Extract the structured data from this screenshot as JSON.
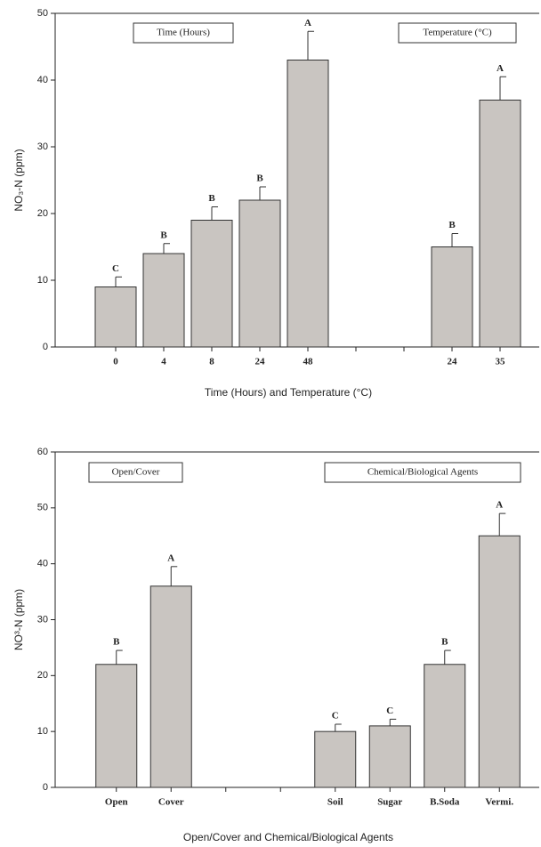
{
  "chart_data": [
    {
      "type": "bar",
      "ylabel": "NO₃-N (ppm)",
      "xlabel": "Time (Hours) and Temperature (°C)",
      "categories": [
        "0",
        "4",
        "8",
        "24",
        "48",
        null,
        null,
        "24",
        "35"
      ],
      "values": [
        9,
        14,
        19,
        22,
        43,
        null,
        null,
        15,
        37
      ],
      "errors": [
        1.5,
        1.5,
        2,
        2,
        4.3,
        null,
        null,
        2,
        3.5
      ],
      "value_labels": [
        "C",
        "B",
        "B",
        "B",
        "A",
        null,
        null,
        "B",
        "A"
      ],
      "annotations": [
        "Time (Hours)",
        "Temperature (°C)"
      ],
      "color": "#c9c5c1",
      "ylim": [
        0,
        50
      ],
      "yticks": [
        0,
        10,
        20,
        30,
        40,
        50
      ]
    },
    {
      "type": "bar",
      "ylabel": "NO³-N (ppm)",
      "xlabel": "Open/Cover and Chemical/Biological Agents",
      "categories": [
        "Open",
        "Cover",
        null,
        null,
        "Soil",
        "Sugar",
        "B.Soda",
        "Vermi."
      ],
      "values": [
        22,
        36,
        null,
        null,
        10,
        11,
        22,
        45
      ],
      "errors": [
        2.5,
        3.5,
        null,
        null,
        1.3,
        1.2,
        2.5,
        4
      ],
      "value_labels": [
        "B",
        "A",
        null,
        null,
        "C",
        "C",
        "B",
        "A"
      ],
      "annotations": [
        "Open/Cover",
        "Chemical/Biological Agents"
      ],
      "color": "#c9c5c1",
      "ylim": [
        0,
        60
      ],
      "yticks": [
        0,
        10,
        20,
        30,
        40,
        50,
        60
      ]
    }
  ]
}
